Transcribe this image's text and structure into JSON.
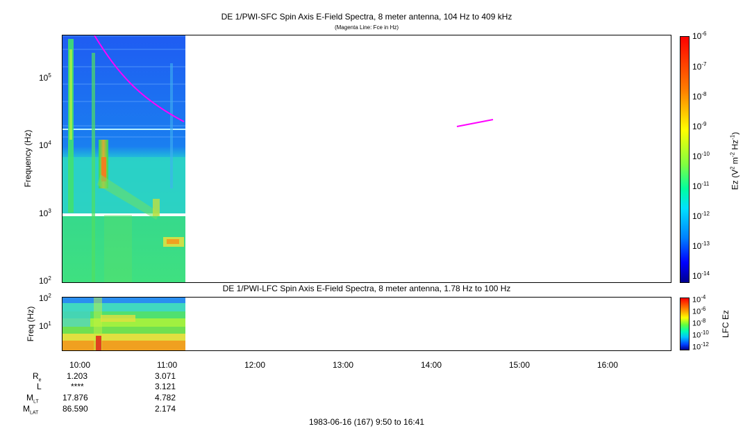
{
  "chart_data": [
    {
      "type": "heatmap",
      "title": "DE 1/PWI-SFC  Spin Axis E-Field Spectra, 8 meter antenna, 104 Hz to 409 kHz",
      "subtitle": "(Magenta Line: Fce in Hz)",
      "ylabel": "Frequency (Hz)",
      "yscale": "log",
      "ylim": [
        100,
        409000
      ],
      "yticks": [
        {
          "exp": "2",
          "value": 100
        },
        {
          "exp": "3",
          "value": 1000
        },
        {
          "exp": "4",
          "value": 10000
        },
        {
          "exp": "5",
          "value": 100000
        }
      ],
      "xlim": [
        "09:50",
        "16:41"
      ],
      "data_coverage": [
        "09:50",
        "11:13"
      ],
      "colorbar": {
        "label_main": "Ez (V",
        "label_sup1": "2",
        "label_mid": " m",
        "label_sup2": "-2",
        "label_mid2": " Hz",
        "label_sup3": "-1",
        "label_end": ")",
        "scale": "log",
        "range": [
          1e-14,
          1e-06
        ],
        "ticks": [
          "-6",
          "-7",
          "-8",
          "-9",
          "-10",
          "-11",
          "-12",
          "-13",
          "-14"
        ]
      },
      "fce_line": {
        "name": "Fce in Hz",
        "color": "#ff00ff",
        "segments": [
          [
            {
              "x": "10:06",
              "y": 409000
            },
            {
              "x": "10:30",
              "y": 190000
            },
            {
              "x": "10:50",
              "y": 75000
            },
            {
              "x": "11:13",
              "y": 23000
            }
          ],
          [
            {
              "x": "14:17",
              "y": 19000
            },
            {
              "x": "14:42",
              "y": 24000
            }
          ]
        ]
      }
    },
    {
      "type": "heatmap",
      "title": "DE 1/PWI-LFC  Spin Axis E-Field Spectra, 8 meter antenna, 1.78 Hz to 100 Hz",
      "ylabel": "Freq (Hz)",
      "yscale": "log",
      "ylim": [
        1.78,
        100
      ],
      "yticks": [
        {
          "exp": "1",
          "value": 10
        },
        {
          "exp": "2",
          "value": 100
        }
      ],
      "xlim": [
        "09:50",
        "16:41"
      ],
      "data_coverage": [
        "09:50",
        "11:13"
      ],
      "colorbar": {
        "label": "LFC Ez",
        "scale": "log",
        "range": [
          1e-12,
          0.0001
        ],
        "ticks": [
          "-4",
          "-6",
          "-8",
          "-10",
          "-12"
        ]
      }
    }
  ],
  "xaxis": {
    "ticks": [
      "10:00",
      "11:00",
      "12:00",
      "13:00",
      "14:00",
      "15:00",
      "16:00"
    ],
    "footer": "1983-06-16 (167) 9:50 to 16:41"
  },
  "ephemeris": {
    "rows": [
      {
        "label": "R",
        "sub": "e",
        "values": [
          "1.203",
          "3.071"
        ]
      },
      {
        "label": "L",
        "sub": "",
        "values": [
          "****",
          "3.121"
        ]
      },
      {
        "label": "M",
        "sub": "LT",
        "values": [
          "17.876",
          "4.782"
        ]
      },
      {
        "label": "M",
        "sub": "LAT",
        "values": [
          "86.590",
          "2.174"
        ]
      }
    ]
  },
  "colors": {
    "fce": "#ff00ff",
    "border": "#000000"
  }
}
